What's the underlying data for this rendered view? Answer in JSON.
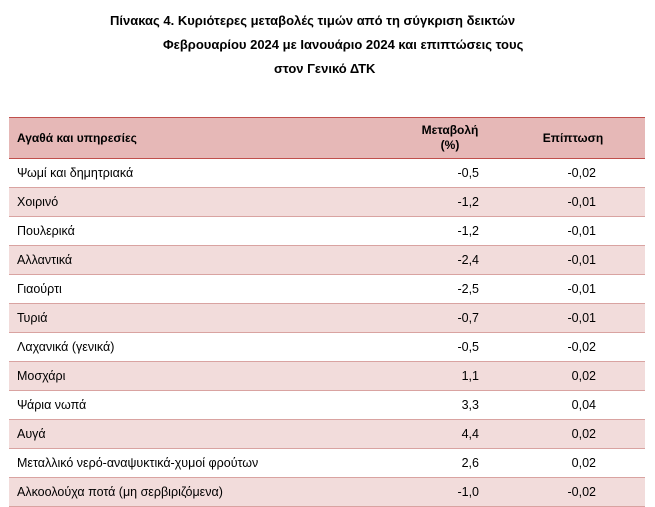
{
  "title": {
    "line1": "Πίνακας  4. Κυριότερες μεταβολές τιμών από τη σύγκριση δεικτών",
    "line2": "Φεβρουαρίου 2024 με Ιανουάριο 2024 και επιπτώσεις τους",
    "line3": "στον Γενικό ΔΤΚ"
  },
  "table": {
    "headers": {
      "item": "Αγαθά και υπηρεσίες",
      "change_line1": "Μεταβολή",
      "change_line2": "(%)",
      "impact": "Επίπτωση"
    },
    "rows": [
      {
        "item": "Ψωμί και δημητριακά",
        "change": "-0,5",
        "impact": "-0,02"
      },
      {
        "item": "Χοιρινό",
        "change": "-1,2",
        "impact": "-0,01"
      },
      {
        "item": "Πουλερικά",
        "change": "-1,2",
        "impact": "-0,01"
      },
      {
        "item": "Αλλαντικά",
        "change": "-2,4",
        "impact": "-0,01"
      },
      {
        "item": "Γιαούρτι",
        "change": "-2,5",
        "impact": "-0,01"
      },
      {
        "item": "Τυριά",
        "change": "-0,7",
        "impact": "-0,01"
      },
      {
        "item": "Λαχανικά (γενικά)",
        "change": "-0,5",
        "impact": "-0,02"
      },
      {
        "item": "Μοσχάρι",
        "change": "1,1",
        "impact": "0,02"
      },
      {
        "item": "Ψάρια νωπά",
        "change": "3,3",
        "impact": "0,04"
      },
      {
        "item": "Αυγά",
        "change": "4,4",
        "impact": "0,02"
      },
      {
        "item": "Μεταλλικό νερό-αναψυκτικά-χυμοί φρούτων",
        "change": "2,6",
        "impact": "0,02"
      },
      {
        "item": "Αλκοολούχα ποτά (μη σερβιριζόμενα)",
        "change": "-1,0",
        "impact": "-0,02"
      }
    ]
  },
  "colors": {
    "header_bg": "#e6b8b7",
    "stripe_bg": "#f2dcdb"
  }
}
